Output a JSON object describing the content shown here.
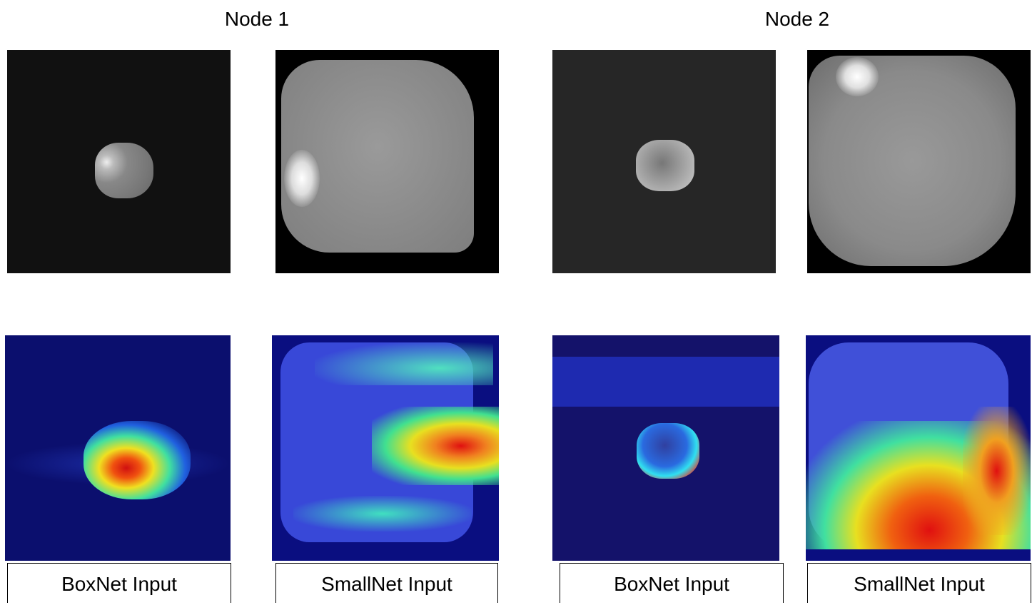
{
  "nodes": [
    {
      "title": "Node 1",
      "captions": [
        "BoxNet Input",
        "SmallNet Input"
      ]
    },
    {
      "title": "Node 2",
      "captions": [
        "BoxNet Input",
        "SmallNet Input"
      ]
    }
  ]
}
